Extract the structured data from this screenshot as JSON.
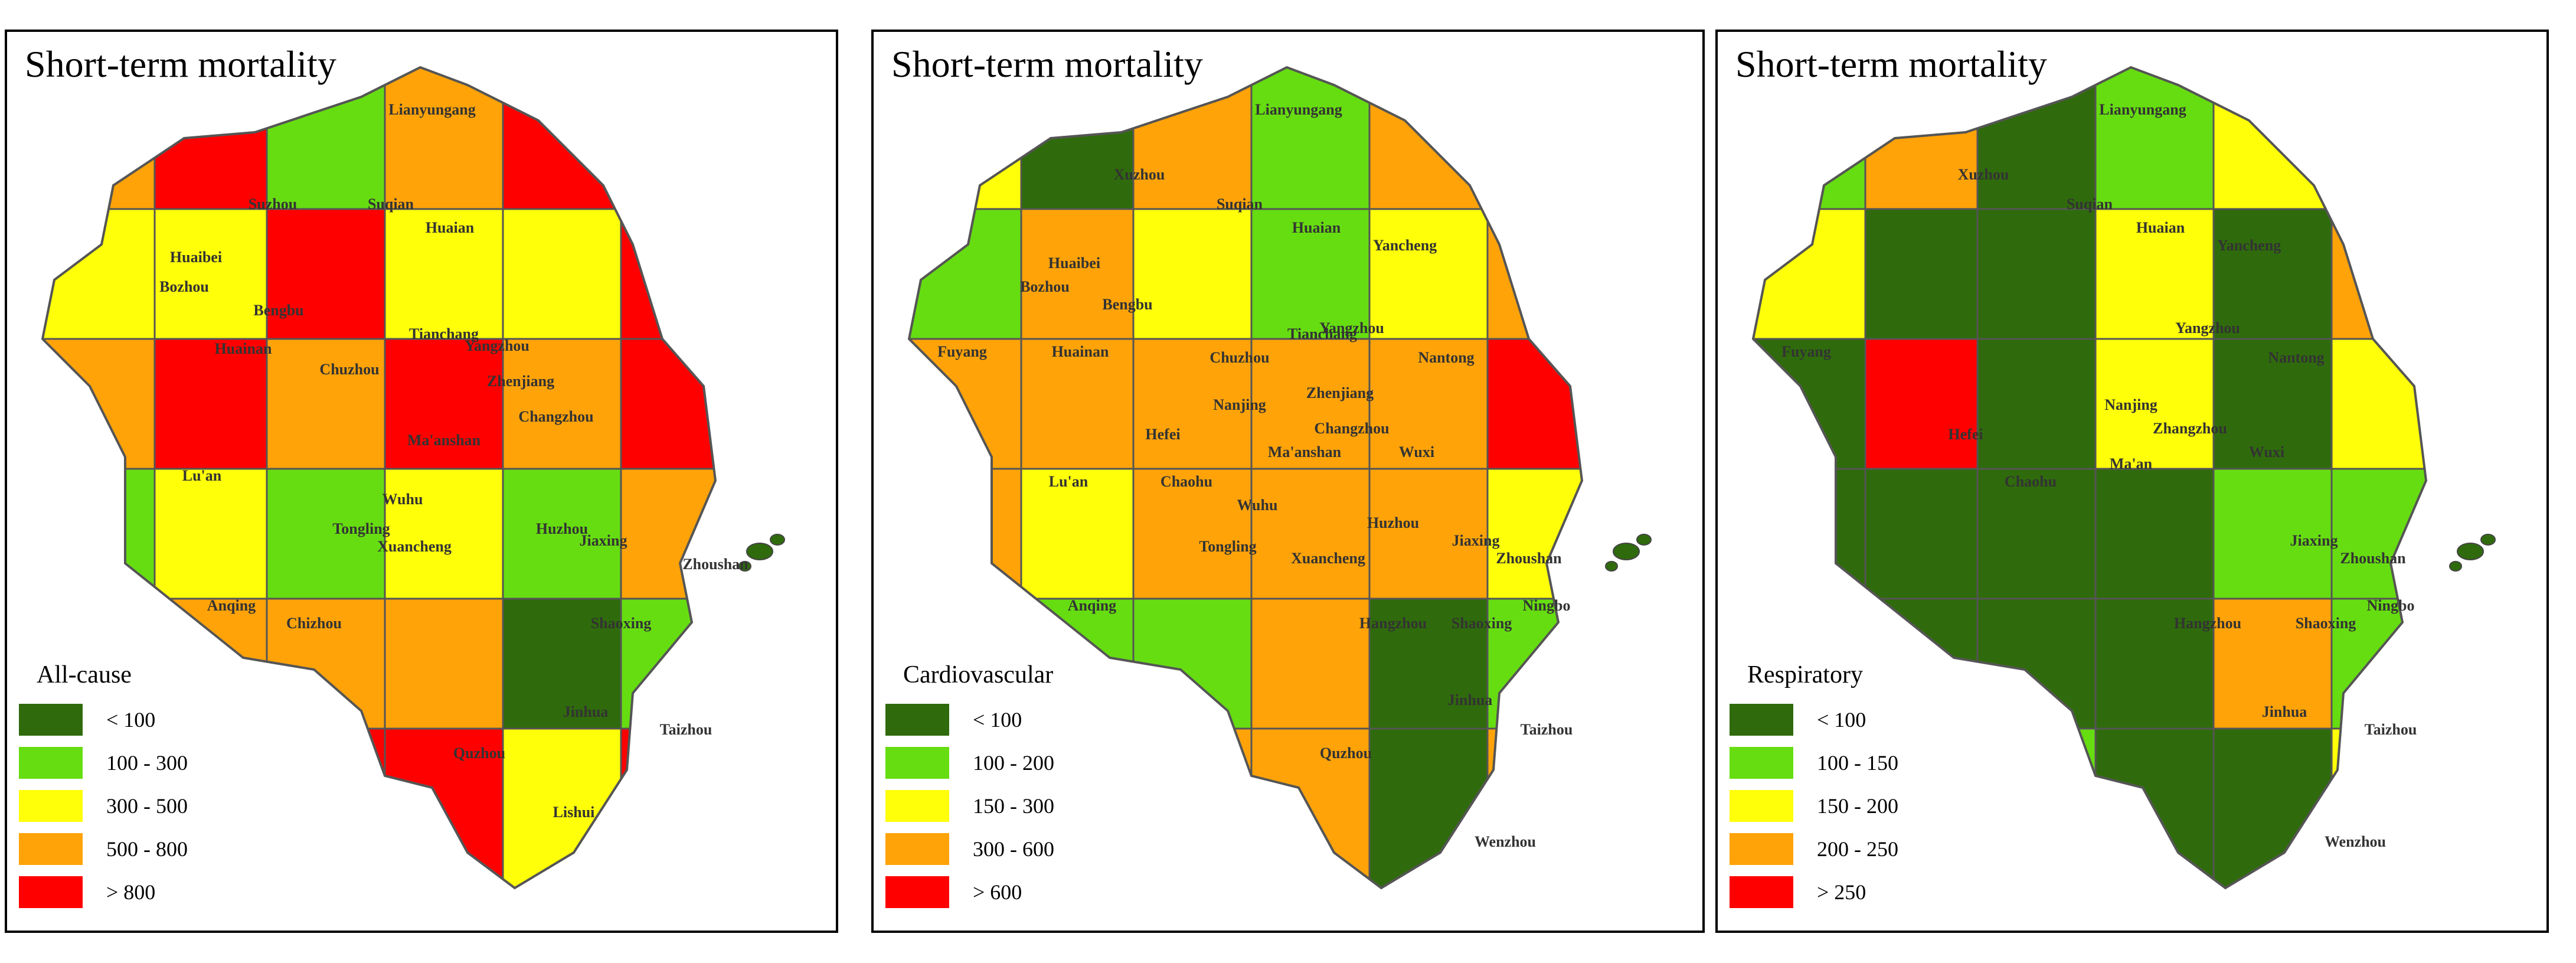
{
  "colors": {
    "dark_green": "#2f6b0c",
    "light_green": "#66dd11",
    "yellow": "#ffff0a",
    "orange": "#ffa309",
    "red": "#ff0000",
    "sea": "#2f6b0c"
  },
  "panels": [
    {
      "title": "Short-term mortality",
      "legend_title": "All-cause",
      "legend": [
        {
          "range": "< 100",
          "class": "dark_green"
        },
        {
          "range": "100 - 300",
          "class": "light_green"
        },
        {
          "range": "300 - 500",
          "class": "yellow"
        },
        {
          "range": "500 - 800",
          "class": "orange"
        },
        {
          "range": "> 800",
          "class": "red"
        }
      ],
      "labels": [
        "Lianyungang",
        "Suzhou",
        "Suqian",
        "Huaian",
        "Huaibei",
        "Bozhou",
        "Bengbu",
        "Huainan",
        "Chuzhou",
        "Tianchang",
        "Yangzhou",
        "Zhenjiang",
        "Changzhou",
        "Ma'anshan",
        "Lu'an",
        "Wuhu",
        "Tongling",
        "Huzhou",
        "Jiaxing",
        "Xuancheng",
        "Zhoushan",
        "Anqing",
        "Chizhou",
        "Shaoxing",
        "Jinhua",
        "Taizhou",
        "Quzhou",
        "Lishui"
      ],
      "regions": [
        "orange",
        "red",
        "light_green",
        "orange",
        "red",
        "yellow",
        "yellow",
        "yellow",
        "red",
        "yellow",
        "yellow",
        "red",
        "orange",
        "red",
        "orange",
        "red",
        "orange",
        "red",
        "light_green",
        "yellow",
        "light_green",
        "yellow",
        "light_green",
        "orange",
        "red",
        "orange",
        "orange",
        "orange",
        "dark_green",
        "light_green",
        "light_green",
        "red",
        "red",
        "red",
        "yellow",
        "red"
      ]
    },
    {
      "title": "Short-term mortality",
      "legend_title": "Cardiovascular",
      "legend": [
        {
          "range": "< 100",
          "class": "dark_green"
        },
        {
          "range": "100 - 200",
          "class": "light_green"
        },
        {
          "range": "150 - 300",
          "class": "yellow"
        },
        {
          "range": "300 - 600",
          "class": "orange"
        },
        {
          "range": "> 600",
          "class": "red"
        }
      ],
      "labels": [
        "Lianyungang",
        "Xuzhou",
        "Suqian",
        "Huaian",
        "Yancheng",
        "Huaibei",
        "Bozhou",
        "Bengbu",
        "Fuyang",
        "Huainan",
        "Chuzhou",
        "Tianchang",
        "Yangzhou",
        "Nantong",
        "Nanjing",
        "Zhenjiang",
        "Changzhou",
        "Wuxi",
        "Hefei",
        "Ma'anshan",
        "Chaohu",
        "Lu'an",
        "Wuhu",
        "Huzhou",
        "Jiaxing",
        "Zhoushan",
        "Xuancheng",
        "Tongling",
        "Anqing",
        "Hangzhou",
        "Shaoxing",
        "Ningbo",
        "Jinhua",
        "Taizhou",
        "Quzhou",
        "Wenzhou"
      ],
      "regions": [
        "yellow",
        "dark_green",
        "orange",
        "light_green",
        "orange",
        "yellow",
        "light_green",
        "orange",
        "yellow",
        "light_green",
        "yellow",
        "orange",
        "orange",
        "orange",
        "orange",
        "orange",
        "orange",
        "red",
        "orange",
        "yellow",
        "orange",
        "orange",
        "orange",
        "yellow",
        "light_green",
        "light_green",
        "light_green",
        "orange",
        "dark_green",
        "light_green",
        "dark_green",
        "orange",
        "orange",
        "orange",
        "dark_green",
        "orange"
      ]
    },
    {
      "title": "Short-term mortality",
      "legend_title": "Respiratory",
      "legend": [
        {
          "range": "< 100",
          "class": "dark_green"
        },
        {
          "range": "100 - 150",
          "class": "light_green"
        },
        {
          "range": "150 - 200",
          "class": "yellow"
        },
        {
          "range": "200 - 250",
          "class": "orange"
        },
        {
          "range": "> 250",
          "class": "red"
        }
      ],
      "labels": [
        "Lianyungang",
        "Xuzhou",
        "Suqian",
        "Huaian",
        "Yancheng",
        "Fuyang",
        "Nantong",
        "Nanjing",
        "Yangzhou",
        "Zhangzhou",
        "Wuxi",
        "Hefei",
        "Chaohu",
        "Ma'an",
        "Jiaxing",
        "Zhoushan",
        "Hangzhou",
        "Shaoxing",
        "Ningbo",
        "Jinhua",
        "Taizhou",
        "Wenzhou"
      ],
      "regions": [
        "light_green",
        "orange",
        "dark_green",
        "light_green",
        "yellow",
        "dark_green",
        "yellow",
        "dark_green",
        "dark_green",
        "yellow",
        "dark_green",
        "orange",
        "dark_green",
        "red",
        "dark_green",
        "yellow",
        "dark_green",
        "yellow",
        "dark_green",
        "dark_green",
        "dark_green",
        "dark_green",
        "light_green",
        "light_green",
        "dark_green",
        "dark_green",
        "dark_green",
        "dark_green",
        "orange",
        "light_green",
        "yellow",
        "light_green",
        "light_green",
        "dark_green",
        "dark_green",
        "yellow"
      ]
    }
  ]
}
